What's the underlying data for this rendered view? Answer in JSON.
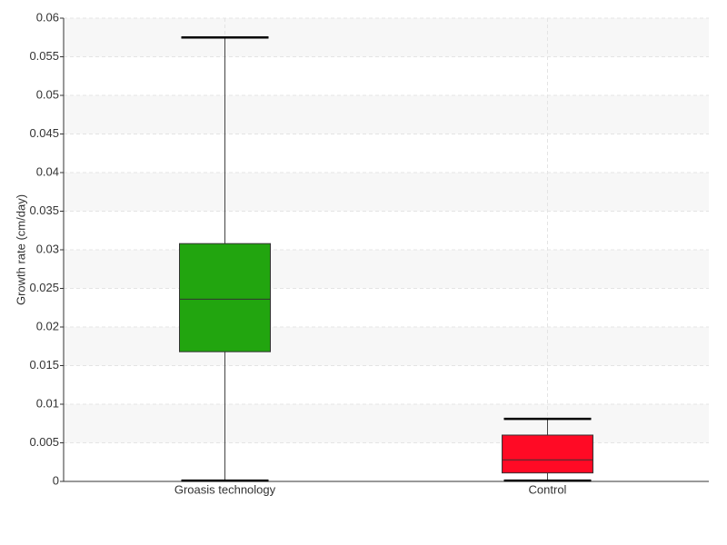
{
  "chart_data": {
    "type": "box",
    "y_label": "Growth rate (cm/day)",
    "categories": [
      "Groasis technology",
      "Control"
    ],
    "boxes": [
      {
        "min": 0.0001,
        "q1": 0.0168,
        "median": 0.0236,
        "q3": 0.0308,
        "max": 0.0575,
        "color": "#22a50f"
      },
      {
        "min": 0.0001,
        "q1": 0.0011,
        "median": 0.0028,
        "q3": 0.006,
        "max": 0.0081,
        "color": "#ff0a25"
      }
    ],
    "ylim": [
      0,
      0.06
    ],
    "yticks": [
      0,
      0.005,
      0.01,
      0.015,
      0.02,
      0.025,
      0.03,
      0.035,
      0.04,
      0.045,
      0.05,
      0.055,
      0.06
    ],
    "grid": true
  }
}
